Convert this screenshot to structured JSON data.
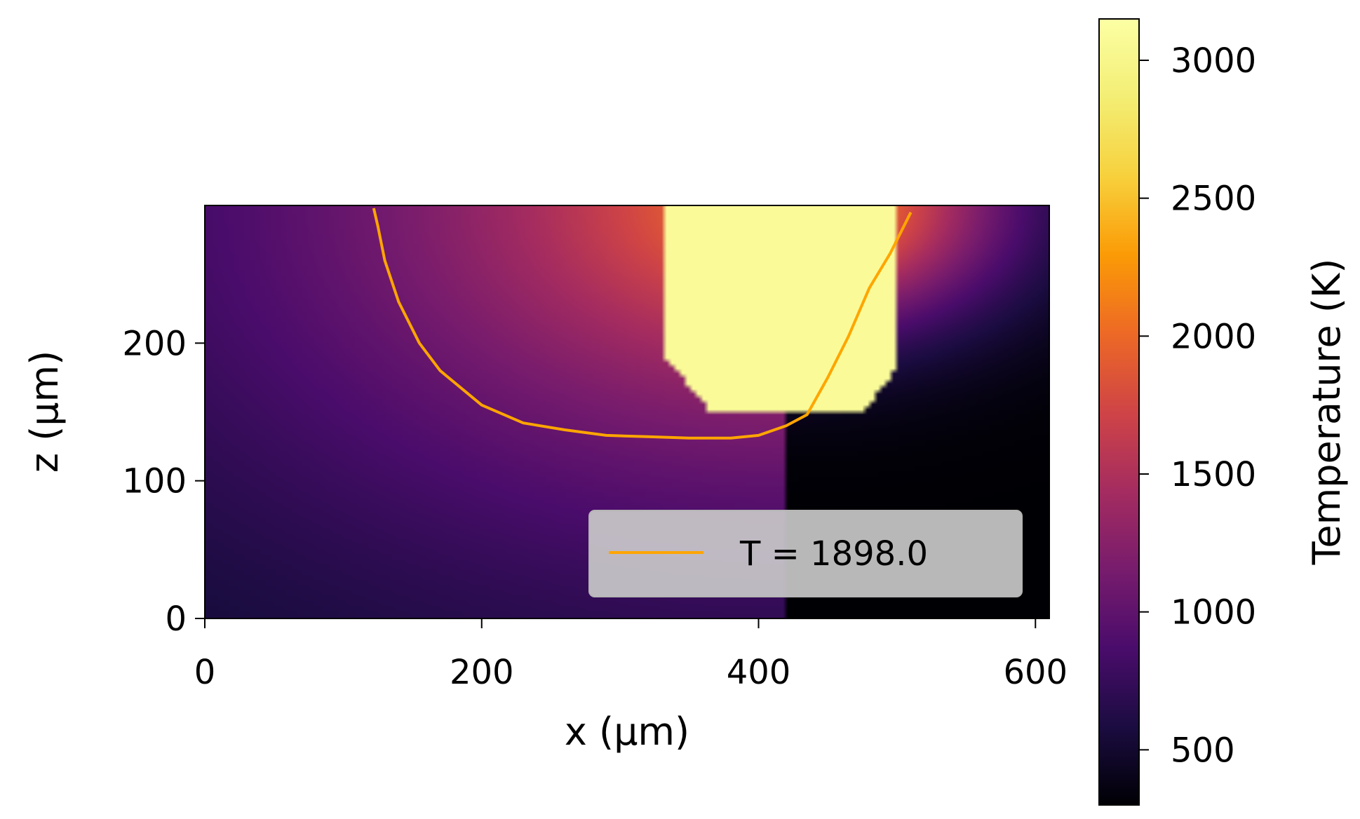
{
  "chart_data": {
    "type": "heatmap",
    "xlabel": "x (μm)",
    "ylabel": "z (μm)",
    "xlim": [
      0,
      610
    ],
    "ylim": [
      0,
      300
    ],
    "x_ticks": [
      0,
      200,
      400,
      600
    ],
    "y_ticks": [
      0,
      100,
      200
    ],
    "colormap": "inferno",
    "colorbar": {
      "label": "Temperature (K)",
      "range": [
        300,
        3150
      ],
      "ticks": [
        500,
        1000,
        1500,
        2000,
        2500,
        3000
      ]
    },
    "melt_pool_clip_value": 3000,
    "contour": {
      "label": "T = 1898.0",
      "level": 1898.0,
      "color": "#ffa500",
      "x": [
        122,
        125,
        130,
        140,
        155,
        170,
        200,
        230,
        260,
        290,
        320,
        350,
        380,
        400,
        420,
        435,
        450,
        465,
        480,
        495,
        510
      ],
      "z": [
        298,
        285,
        260,
        230,
        200,
        180,
        155,
        142,
        137,
        133,
        132,
        131,
        131,
        133,
        140,
        148,
        175,
        205,
        240,
        265,
        295
      ]
    },
    "legend": {
      "placement": "lower-right"
    }
  }
}
